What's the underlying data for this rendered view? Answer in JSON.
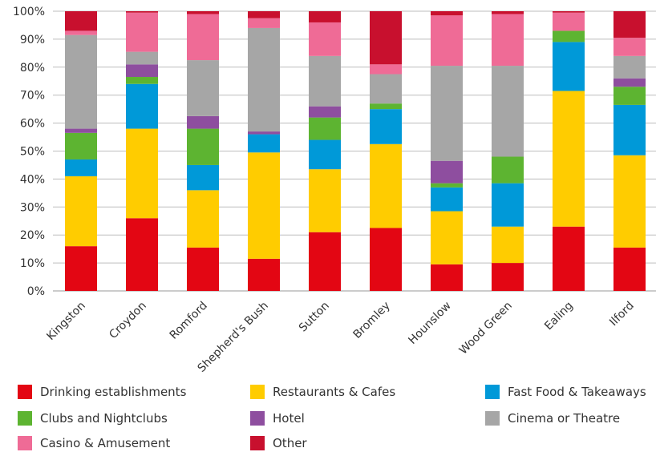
{
  "chart_data": {
    "type": "bar",
    "stacked": true,
    "categories": [
      "Kingston",
      "Croydon",
      "Romford",
      "Shepherd's Bush",
      "Sutton",
      "Bromley",
      "Hounslow",
      "Wood Green",
      "Ealing",
      "Ilford"
    ],
    "yticks": [
      "0%",
      "10%",
      "20%",
      "30%",
      "40%",
      "50%",
      "60%",
      "70%",
      "80%",
      "90%",
      "100%"
    ],
    "ylim": [
      0,
      100
    ],
    "grid": true,
    "legend_position": "bottom",
    "series": [
      {
        "name": "Drinking establishments",
        "color": "#e30613",
        "values": [
          16,
          26,
          15.5,
          11.5,
          21,
          22.5,
          9.5,
          10,
          23,
          15.5
        ]
      },
      {
        "name": "Restaurants & Cafes",
        "color": "#ffcc00",
        "values": [
          25,
          32,
          20.5,
          38,
          22.5,
          30,
          19,
          13,
          48.5,
          33
        ]
      },
      {
        "name": "Fast Food & Takeaways",
        "color": "#0099d8",
        "values": [
          6,
          16,
          9,
          6.5,
          10.5,
          12.5,
          8.5,
          15.5,
          17.5,
          18
        ]
      },
      {
        "name": "Clubs and Nightclubs",
        "color": "#5db431",
        "values": [
          9.5,
          2.5,
          13,
          0,
          8,
          2,
          1.5,
          9.5,
          4,
          6.5
        ]
      },
      {
        "name": "Hotel",
        "color": "#8e4e9f",
        "values": [
          1.5,
          4.5,
          4.5,
          1,
          4,
          0,
          8,
          0,
          0,
          3
        ]
      },
      {
        "name": "Cinema or Theatre",
        "color": "#a6a6a6",
        "values": [
          33.5,
          4.5,
          20,
          37,
          18,
          10.5,
          34,
          32.5,
          0,
          8
        ]
      },
      {
        "name": "Casino & Amusement",
        "color": "#ef6b96",
        "values": [
          1.5,
          14,
          16.5,
          3.5,
          12,
          3.5,
          18,
          18.5,
          6.5,
          6.5
        ]
      },
      {
        "name": "Other",
        "color": "#c8102e",
        "values": [
          7,
          0.5,
          1,
          2.5,
          4,
          19,
          1.5,
          1,
          0.5,
          9.5
        ]
      }
    ]
  }
}
